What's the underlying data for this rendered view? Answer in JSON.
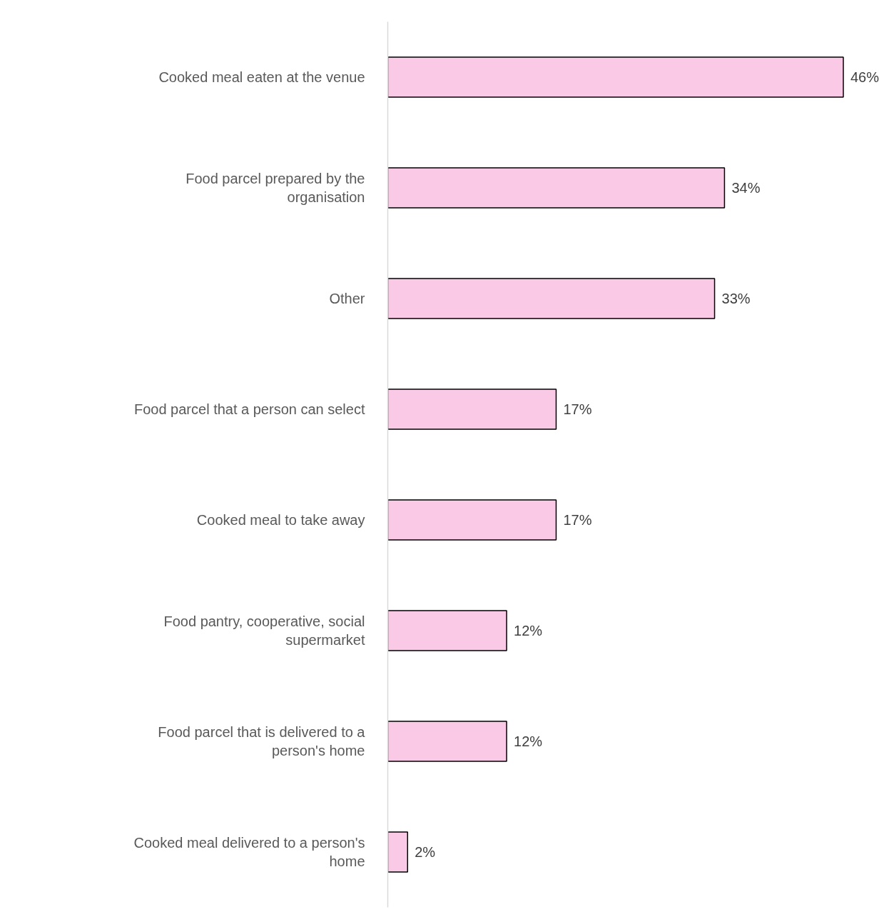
{
  "chart_data": {
    "type": "bar",
    "orientation": "horizontal",
    "categories": [
      "Cooked meal eaten at the venue",
      "Food parcel prepared by the organisation",
      "Other",
      "Food parcel that a person can select",
      "Cooked meal to take away",
      "Food pantry, cooperative, social supermarket",
      "Food parcel that is delivered to a person's home",
      "Cooked meal delivered to a person's home"
    ],
    "values": [
      46,
      34,
      33,
      17,
      17,
      12,
      12,
      2
    ],
    "value_labels": [
      "46%",
      "34%",
      "33%",
      "17%",
      "17%",
      "12%",
      "12%",
      "2%"
    ],
    "color": "#f9c9e6"
  }
}
